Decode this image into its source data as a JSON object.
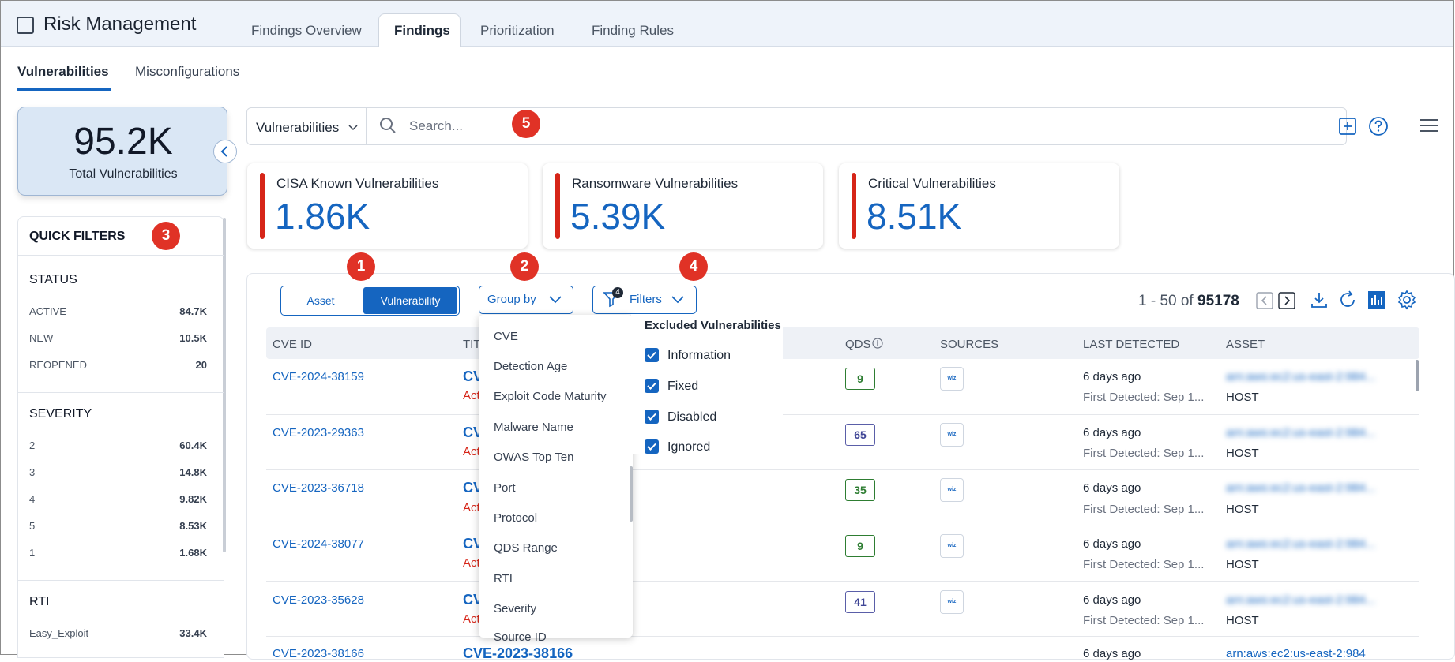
{
  "header": {
    "app_title": "Risk Management",
    "tabs": [
      "Findings Overview",
      "Findings",
      "Prioritization",
      "Finding Rules"
    ],
    "active_tab": "Findings"
  },
  "subtabs": [
    "Vulnerabilities",
    "Misconfigurations"
  ],
  "total": {
    "value": "95.2K",
    "label": "Total Vulnerabilities"
  },
  "quick_filters": {
    "title": "QUICK FILTERS",
    "status": {
      "heading": "STATUS",
      "items": [
        {
          "name": "ACTIVE",
          "count": "84.7K"
        },
        {
          "name": "NEW",
          "count": "10.5K"
        },
        {
          "name": "REOPENED",
          "count": "20"
        }
      ]
    },
    "severity": {
      "heading": "SEVERITY",
      "items": [
        {
          "name": "2",
          "count": "60.4K"
        },
        {
          "name": "3",
          "count": "14.8K"
        },
        {
          "name": "4",
          "count": "9.82K"
        },
        {
          "name": "5",
          "count": "8.53K"
        },
        {
          "name": "1",
          "count": "1.68K"
        }
      ]
    },
    "rti": {
      "heading": "RTI",
      "items": [
        {
          "name": "Easy_Exploit",
          "count": "33.4K"
        }
      ]
    }
  },
  "search": {
    "scope": "Vulnerabilities",
    "placeholder": "Search..."
  },
  "metrics": [
    {
      "label": "CISA Known Vulnerabilities",
      "value": "1.86K"
    },
    {
      "label": "Ransomware Vulnerabilities",
      "value": "5.39K"
    },
    {
      "label": "Critical Vulnerabilities",
      "value": "8.51K"
    }
  ],
  "toolbar": {
    "toggle": [
      "Asset",
      "Vulnerability"
    ],
    "group_by": "Group by",
    "filters": "Filters",
    "filter_count": "4",
    "pager_range": "1 - 50 of",
    "pager_total": "95178"
  },
  "table": {
    "headers": [
      "CVE ID",
      "TITLE",
      "QDS",
      "SOURCES",
      "LAST DETECTED",
      "ASSET"
    ],
    "rows": [
      {
        "cve": "CVE-2024-38159",
        "title": "CV",
        "subtitle": "Act",
        "qds": "9",
        "source": "wiz",
        "last": "6 days ago",
        "first": "First Detected: Sep 1...",
        "asset": "arn:aws:ec2:us-east-2:984...",
        "type": "HOST"
      },
      {
        "cve": "CVE-2023-29363",
        "title": "CV",
        "subtitle": "Act",
        "qds": "65",
        "source": "wiz",
        "last": "6 days ago",
        "first": "First Detected: Sep 1...",
        "asset": "arn:aws:ec2:us-east-2:984...",
        "type": "HOST"
      },
      {
        "cve": "CVE-2023-36718",
        "title": "CV",
        "subtitle": "Act",
        "qds": "35",
        "source": "wiz",
        "last": "6 days ago",
        "first": "First Detected: Sep 1...",
        "asset": "arn:aws:ec2:us-east-2:984...",
        "type": "HOST"
      },
      {
        "cve": "CVE-2024-38077",
        "title": "CV",
        "subtitle": "Act",
        "qds": "9",
        "source": "wiz",
        "last": "6 days ago",
        "first": "First Detected: Sep 1...",
        "asset": "arn:aws:ec2:us-east-2:984...",
        "type": "HOST"
      },
      {
        "cve": "CVE-2023-35628",
        "title": "CV",
        "subtitle": "Act",
        "qds": "41",
        "source": "wiz",
        "last": "6 days ago",
        "first": "First Detected: Sep 1...",
        "asset": "arn:aws:ec2:us-east-2:984...",
        "type": "HOST"
      },
      {
        "cve": "CVE-2023-38166",
        "title": "CVE-2023-38166",
        "last": "6 days ago",
        "asset": "arn:aws:ec2:us-east-2:984"
      }
    ]
  },
  "group_by_menu": [
    "CVE",
    "Detection Age",
    "Exploit Code Maturity",
    "Malware Name",
    "OWAS Top Ten",
    "Port",
    "Protocol",
    "QDS Range",
    "RTI",
    "Severity",
    "Source ID"
  ],
  "filters_menu": {
    "title": "Excluded Vulnerabilities",
    "items": [
      "Information",
      "Fixed",
      "Disabled",
      "Ignored"
    ]
  },
  "steps": [
    "1",
    "2",
    "3",
    "4",
    "5"
  ]
}
